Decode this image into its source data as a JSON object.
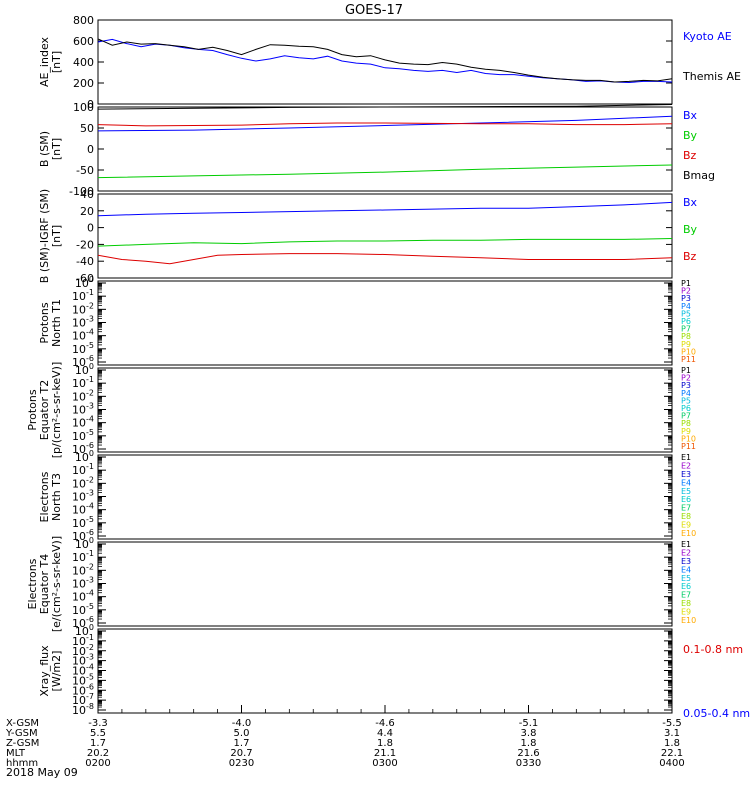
{
  "title": "GOES-17",
  "date_label": "2018 May 09",
  "colors": {
    "black": "#000000",
    "blue": "#0000ff",
    "green": "#00cc00",
    "red": "#dd0000",
    "channels": [
      "#000000",
      "#9900cc",
      "#0000cc",
      "#0077ff",
      "#00bbdd",
      "#00cccc",
      "#00cc66",
      "#99dd00",
      "#dddd00",
      "#ffaa00",
      "#ee5500",
      "#dd0000"
    ]
  },
  "chart_data": [
    {
      "type": "line",
      "ylabel_lines": [
        "AE_index",
        "[nT]"
      ],
      "ylim": [
        0,
        800
      ],
      "yticks": [
        {
          "v": 0,
          "label": "0"
        },
        {
          "v": 200,
          "label": "200"
        },
        {
          "v": 400,
          "label": "400"
        },
        {
          "v": 600,
          "label": "600"
        },
        {
          "v": 800,
          "label": "800"
        }
      ],
      "xlim": [
        0,
        120
      ],
      "series": [
        {
          "name": "Kyoto AE",
          "color": "#0000ff",
          "x": [
            0,
            3,
            6,
            9,
            12,
            15,
            18,
            21,
            24,
            27,
            30,
            33,
            36,
            39,
            42,
            45,
            48,
            51,
            54,
            57,
            60,
            63,
            66,
            69,
            72,
            75,
            78,
            81,
            84,
            87,
            90,
            93,
            96,
            99,
            102,
            105,
            108,
            111,
            114,
            117,
            120
          ],
          "y": [
            590,
            615,
            575,
            545,
            570,
            560,
            535,
            520,
            510,
            470,
            435,
            410,
            430,
            460,
            440,
            430,
            455,
            410,
            390,
            380,
            345,
            335,
            320,
            310,
            320,
            300,
            320,
            290,
            280,
            280,
            265,
            250,
            240,
            230,
            215,
            220,
            210,
            205,
            215,
            215,
            210
          ]
        },
        {
          "name": "Themis AE",
          "color": "#000000",
          "x": [
            0,
            3,
            6,
            9,
            12,
            15,
            18,
            21,
            24,
            27,
            30,
            33,
            36,
            39,
            42,
            45,
            48,
            51,
            54,
            57,
            60,
            63,
            66,
            69,
            72,
            75,
            78,
            81,
            84,
            87,
            90,
            93,
            96,
            99,
            102,
            105,
            108,
            111,
            114,
            117,
            120
          ],
          "y": [
            620,
            560,
            590,
            570,
            575,
            560,
            545,
            520,
            540,
            510,
            470,
            520,
            565,
            560,
            550,
            545,
            520,
            470,
            450,
            460,
            420,
            390,
            380,
            375,
            395,
            380,
            350,
            330,
            320,
            300,
            275,
            255,
            240,
            230,
            225,
            225,
            210,
            215,
            225,
            220,
            240
          ]
        }
      ]
    },
    {
      "type": "line",
      "ylabel_lines": [
        "B (SM)",
        "[nT]"
      ],
      "ylim": [
        -100,
        100
      ],
      "yticks": [
        {
          "v": -100,
          "label": "-100"
        },
        {
          "v": -50,
          "label": "-50"
        },
        {
          "v": 0,
          "label": "0"
        },
        {
          "v": 50,
          "label": "50"
        },
        {
          "v": 100,
          "label": "100"
        }
      ],
      "xlim": [
        0,
        120
      ],
      "series": [
        {
          "name": "Bx",
          "color": "#0000ff",
          "x": [
            0,
            20,
            40,
            60,
            80,
            100,
            120
          ],
          "y": [
            43,
            45,
            50,
            56,
            62,
            68,
            78
          ]
        },
        {
          "name": "By",
          "color": "#00cc00",
          "x": [
            0,
            20,
            40,
            60,
            80,
            100,
            120
          ],
          "y": [
            -68,
            -64,
            -60,
            -55,
            -48,
            -43,
            -38
          ]
        },
        {
          "name": "Bz",
          "color": "#dd0000",
          "x": [
            0,
            10,
            20,
            30,
            40,
            50,
            60,
            70,
            80,
            90,
            100,
            110,
            120
          ],
          "y": [
            58,
            55,
            56,
            57,
            60,
            62,
            62,
            61,
            60,
            60,
            58,
            58,
            60
          ]
        },
        {
          "name": "Bmag",
          "color": "#000000",
          "x": [
            0,
            20,
            40,
            60,
            80,
            100,
            120
          ],
          "y": [
            95,
            97,
            99,
            100,
            101,
            102,
            106
          ]
        }
      ]
    },
    {
      "type": "line",
      "ylabel_lines": [
        "B (SM)-IGRF (SM)",
        "[nT]"
      ],
      "ylim": [
        -60,
        40
      ],
      "yticks": [
        {
          "v": -60,
          "label": "-60"
        },
        {
          "v": -40,
          "label": "-40"
        },
        {
          "v": -20,
          "label": "-20"
        },
        {
          "v": 0,
          "label": "0"
        },
        {
          "v": 20,
          "label": "20"
        },
        {
          "v": 40,
          "label": "40"
        }
      ],
      "xlim": [
        0,
        120
      ],
      "series": [
        {
          "name": "Bx",
          "color": "#0000ff",
          "x": [
            0,
            10,
            20,
            30,
            40,
            50,
            60,
            70,
            80,
            90,
            100,
            110,
            120
          ],
          "y": [
            14,
            16,
            17,
            18,
            19,
            20,
            21,
            22,
            23,
            23,
            25,
            27,
            30
          ]
        },
        {
          "name": "By",
          "color": "#00cc00",
          "x": [
            0,
            10,
            20,
            30,
            40,
            50,
            60,
            70,
            80,
            90,
            100,
            110,
            120
          ],
          "y": [
            -22,
            -20,
            -18,
            -19,
            -17,
            -16,
            -16,
            -15,
            -15,
            -14,
            -14,
            -14,
            -13
          ]
        },
        {
          "name": "Bz",
          "color": "#dd0000",
          "x": [
            0,
            5,
            10,
            15,
            20,
            25,
            30,
            40,
            50,
            60,
            70,
            80,
            90,
            100,
            110,
            120
          ],
          "y": [
            -33,
            -38,
            -40,
            -43,
            -38,
            -33,
            -32,
            -31,
            -31,
            -32,
            -34,
            -36,
            -38,
            -38,
            -38,
            -36
          ]
        }
      ]
    },
    {
      "type": "line",
      "ylabel_lines": [
        "Protons",
        "North T1"
      ],
      "log_ticks": [
        {
          "exp": 0
        },
        {
          "exp": -1
        },
        {
          "exp": -2
        },
        {
          "exp": -3
        },
        {
          "exp": -4
        },
        {
          "exp": -5
        },
        {
          "exp": -6
        }
      ],
      "legend": [
        "P1",
        "P2",
        "P3",
        "P4",
        "P5",
        "P6",
        "P7",
        "P8",
        "P9",
        "P10",
        "P11"
      ]
    },
    {
      "type": "line",
      "ylabel_lines": [
        "Protons",
        "Equator T2",
        "[p/(cm²-s-sr-keV)]"
      ],
      "log_ticks": [
        {
          "exp": 0
        },
        {
          "exp": -1
        },
        {
          "exp": -2
        },
        {
          "exp": -3
        },
        {
          "exp": -4
        },
        {
          "exp": -5
        },
        {
          "exp": -6
        }
      ],
      "legend": [
        "P1",
        "P2",
        "P3",
        "P4",
        "P5",
        "P6",
        "P7",
        "P8",
        "P9",
        "P10",
        "P11"
      ]
    },
    {
      "type": "line",
      "ylabel_lines": [
        "Electrons",
        "North T3"
      ],
      "log_ticks": [
        {
          "exp": 0
        },
        {
          "exp": -1
        },
        {
          "exp": -2
        },
        {
          "exp": -3
        },
        {
          "exp": -4
        },
        {
          "exp": -5
        },
        {
          "exp": -6
        }
      ],
      "legend": [
        "E1",
        "E2",
        "E3",
        "E4",
        "E5",
        "E6",
        "E7",
        "E8",
        "E9",
        "E10"
      ]
    },
    {
      "type": "line",
      "ylabel_lines": [
        "Electrons",
        "Equator T4",
        "[e/(cm²-s-sr-keV)]"
      ],
      "log_ticks": [
        {
          "exp": 0
        },
        {
          "exp": -1
        },
        {
          "exp": -2
        },
        {
          "exp": -3
        },
        {
          "exp": -4
        },
        {
          "exp": -5
        },
        {
          "exp": -6
        }
      ],
      "legend": [
        "E1",
        "E2",
        "E3",
        "E4",
        "E5",
        "E6",
        "E7",
        "E8",
        "E9",
        "E10"
      ]
    },
    {
      "type": "line",
      "ylabel_lines": [
        "Xray_flux",
        "[W/m2]"
      ],
      "log_ticks": [
        {
          "exp": 0
        },
        {
          "exp": -1
        },
        {
          "exp": -2
        },
        {
          "exp": -3
        },
        {
          "exp": -4
        },
        {
          "exp": -5
        },
        {
          "exp": -6
        },
        {
          "exp": -7
        },
        {
          "exp": -8
        }
      ],
      "legend_named": [
        {
          "name": "0.1-0.8 nm",
          "color": "#dd0000"
        },
        {
          "name": "0.05-0.4 nm",
          "color": "#0000ff"
        }
      ]
    }
  ],
  "x_axis": {
    "row_labels": [
      "X-GSM",
      "Y-GSM",
      "Z-GSM",
      "MLT",
      "hhmm"
    ],
    "columns": [
      {
        "x": 0,
        "values": [
          "-3.3",
          "5.5",
          "1.7",
          "20.2",
          "0200"
        ]
      },
      {
        "x": 30,
        "values": [
          "-4.0",
          "5.0",
          "1.7",
          "20.7",
          "0230"
        ]
      },
      {
        "x": 60,
        "values": [
          "-4.6",
          "4.4",
          "1.8",
          "21.1",
          "0300"
        ]
      },
      {
        "x": 90,
        "values": [
          "-5.1",
          "3.8",
          "1.8",
          "21.6",
          "0330"
        ]
      },
      {
        "x": 120,
        "values": [
          "-5.5",
          "3.1",
          "1.8",
          "22.1",
          "0400"
        ]
      }
    ]
  }
}
